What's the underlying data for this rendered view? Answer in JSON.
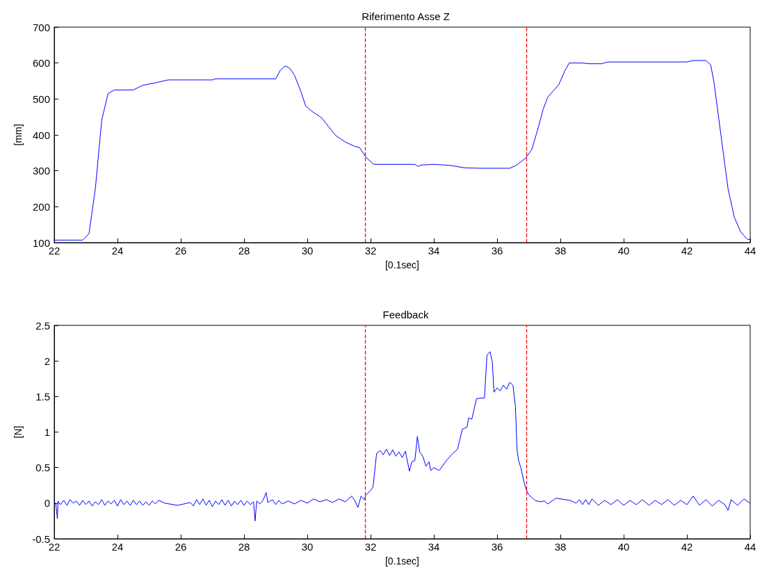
{
  "chart_data": [
    {
      "type": "line",
      "title": "Riferimento Asse Z",
      "xlabel": "[0.1sec]",
      "ylabel": "[mm]",
      "xlim": [
        22,
        44
      ],
      "xticks": [
        22,
        24,
        26,
        28,
        30,
        32,
        34,
        36,
        38,
        40,
        42,
        44
      ],
      "ylim": [
        100,
        700
      ],
      "yticks": [
        100,
        200,
        300,
        400,
        500,
        600,
        700
      ],
      "grid": false,
      "marker": "none",
      "line_style": "solid",
      "ref_lines": [
        {
          "axis": "x",
          "value": 31.82,
          "color": "#ff0000",
          "line_style": "dashed"
        },
        {
          "axis": "x",
          "value": 36.92,
          "color": "#ff0000",
          "line_style": "dashed"
        }
      ],
      "series": [
        {
          "color": "#0000ff",
          "x": [
            22,
            22.9,
            23.1,
            23.3,
            23.5,
            23.7,
            23.9,
            24.5,
            24.8,
            25.2,
            25.6,
            27,
            27.1,
            29.0,
            29.15,
            29.3,
            29.45,
            29.6,
            29.8,
            29.95,
            30.2,
            30.45,
            30.7,
            30.9,
            31.2,
            31.5,
            31.65,
            31.85,
            32.1,
            33.4,
            33.5,
            33.6,
            34.0,
            34.5,
            35.0,
            35.5,
            36.4,
            36.6,
            36.9,
            37.1,
            37.3,
            37.45,
            37.6,
            37.8,
            37.95,
            38.15,
            38.28,
            38.7,
            38.9,
            39.3,
            39.5,
            42.0,
            42.2,
            42.6,
            42.75,
            42.85,
            43.0,
            43.15,
            43.3,
            43.5,
            43.7,
            43.9,
            44
          ],
          "values": [
            107,
            107,
            125,
            250,
            440,
            515,
            525,
            525,
            538,
            545,
            553,
            553,
            556,
            556,
            580,
            592,
            585,
            565,
            520,
            480,
            462,
            448,
            420,
            398,
            380,
            368,
            365,
            338,
            318,
            318,
            312,
            316,
            318,
            315,
            308,
            307,
            307,
            315,
            335,
            360,
            420,
            470,
            505,
            525,
            540,
            580,
            600,
            600,
            598,
            598,
            603,
            603,
            607,
            607,
            595,
            550,
            450,
            350,
            250,
            170,
            130,
            110,
            108
          ]
        }
      ]
    },
    {
      "type": "line",
      "title": "Feedback",
      "xlabel": "[0.1sec]",
      "ylabel": "[N]",
      "xlim": [
        22,
        44
      ],
      "xticks": [
        22,
        24,
        26,
        28,
        30,
        32,
        34,
        36,
        38,
        40,
        42,
        44
      ],
      "ylim": [
        -0.5,
        2.5
      ],
      "yticks": [
        -0.5,
        0,
        0.5,
        1,
        1.5,
        2,
        2.5
      ],
      "grid": false,
      "marker": "none",
      "line_style": "solid",
      "ref_lines": [
        {
          "axis": "x",
          "value": 31.82,
          "color": "#ff0000",
          "line_style": "dashed"
        },
        {
          "axis": "x",
          "value": 36.92,
          "color": "#ff0000",
          "line_style": "dashed"
        }
      ],
      "series": [
        {
          "color": "#0000ff",
          "x": [
            22.0,
            22.05,
            22.1,
            22.12,
            22.2,
            22.3,
            22.4,
            22.5,
            22.6,
            22.7,
            22.8,
            22.9,
            23.0,
            23.1,
            23.2,
            23.3,
            23.4,
            23.5,
            23.6,
            23.7,
            23.8,
            23.9,
            24.0,
            24.1,
            24.2,
            24.3,
            24.4,
            24.5,
            24.6,
            24.7,
            24.8,
            24.9,
            25.0,
            25.1,
            25.2,
            25.3,
            25.5,
            25.9,
            26.3,
            26.4,
            26.5,
            26.6,
            26.7,
            26.8,
            26.9,
            27.0,
            27.1,
            27.2,
            27.3,
            27.4,
            27.5,
            27.6,
            27.7,
            27.8,
            27.9,
            28.0,
            28.1,
            28.2,
            28.3,
            28.35,
            28.4,
            28.5,
            28.6,
            28.7,
            28.75,
            28.9,
            29.0,
            29.1,
            29.2,
            29.4,
            29.6,
            29.8,
            30.0,
            30.2,
            30.4,
            30.6,
            30.8,
            31.0,
            31.2,
            31.4,
            31.5,
            31.6,
            31.7,
            31.8,
            31.85,
            32.0,
            32.08,
            32.19,
            32.3,
            32.4,
            32.5,
            32.6,
            32.7,
            32.8,
            32.9,
            33.0,
            33.1,
            33.23,
            33.3,
            33.4,
            33.48,
            33.55,
            33.65,
            33.75,
            33.85,
            33.9,
            34.0,
            34.17,
            34.4,
            34.6,
            34.75,
            34.9,
            35.05,
            35.1,
            35.2,
            35.35,
            35.6,
            35.68,
            35.78,
            35.85,
            35.9,
            36.0,
            36.1,
            36.2,
            36.3,
            36.4,
            36.5,
            36.58,
            36.63,
            36.68,
            36.75,
            36.85,
            36.91,
            37.0,
            37.1,
            37.2,
            37.35,
            37.5,
            37.6,
            37.86,
            38.3,
            38.5,
            38.6,
            38.7,
            38.8,
            38.9,
            39.0,
            39.2,
            39.4,
            39.6,
            39.8,
            40.0,
            40.2,
            40.4,
            40.6,
            40.8,
            41.0,
            41.2,
            41.4,
            41.6,
            41.8,
            42.0,
            42.2,
            42.4,
            42.6,
            42.8,
            43.0,
            43.2,
            43.3,
            43.4,
            43.6,
            43.8,
            44.0
          ],
          "values": [
            0.02,
            -0.01,
            -0.22,
            0.03,
            -0.02,
            0.04,
            -0.03,
            0.05,
            0.0,
            0.03,
            -0.03,
            0.04,
            -0.02,
            0.03,
            -0.04,
            0.02,
            -0.02,
            0.05,
            -0.03,
            0.03,
            -0.01,
            0.04,
            -0.04,
            0.05,
            -0.02,
            0.03,
            -0.03,
            0.04,
            -0.02,
            0.03,
            -0.03,
            0.02,
            -0.03,
            0.03,
            -0.01,
            0.04,
            0.0,
            -0.03,
            0.01,
            -0.04,
            0.05,
            -0.02,
            0.06,
            -0.03,
            0.04,
            -0.05,
            0.03,
            -0.02,
            0.05,
            -0.03,
            0.04,
            -0.04,
            0.03,
            -0.02,
            0.04,
            -0.03,
            0.03,
            -0.02,
            0.02,
            -0.25,
            0.03,
            -0.01,
            0.04,
            0.15,
            0.01,
            0.05,
            -0.02,
            0.04,
            -0.01,
            0.03,
            -0.01,
            0.04,
            0.0,
            0.06,
            0.02,
            0.05,
            0.01,
            0.06,
            0.02,
            0.1,
            0.04,
            -0.06,
            0.1,
            0.05,
            0.11,
            0.18,
            0.23,
            0.7,
            0.74,
            0.68,
            0.76,
            0.67,
            0.75,
            0.66,
            0.72,
            0.64,
            0.73,
            0.45,
            0.58,
            0.6,
            0.94,
            0.72,
            0.66,
            0.52,
            0.58,
            0.46,
            0.5,
            0.46,
            0.6,
            0.7,
            0.76,
            1.04,
            1.07,
            1.2,
            1.18,
            1.47,
            1.48,
            2.08,
            2.13,
            1.98,
            1.56,
            1.62,
            1.58,
            1.66,
            1.6,
            1.7,
            1.66,
            1.35,
            0.75,
            0.6,
            0.5,
            0.3,
            0.2,
            0.12,
            0.08,
            0.04,
            0.02,
            0.03,
            -0.01,
            0.07,
            0.04,
            0.0,
            0.05,
            -0.02,
            0.05,
            -0.02,
            0.06,
            -0.03,
            0.04,
            -0.02,
            0.05,
            -0.03,
            0.04,
            -0.02,
            0.05,
            -0.03,
            0.04,
            -0.02,
            0.05,
            -0.03,
            0.04,
            -0.02,
            0.1,
            -0.03,
            0.05,
            -0.04,
            0.04,
            -0.02,
            -0.1,
            0.05,
            -0.03,
            0.06,
            0.0
          ]
        }
      ]
    }
  ]
}
